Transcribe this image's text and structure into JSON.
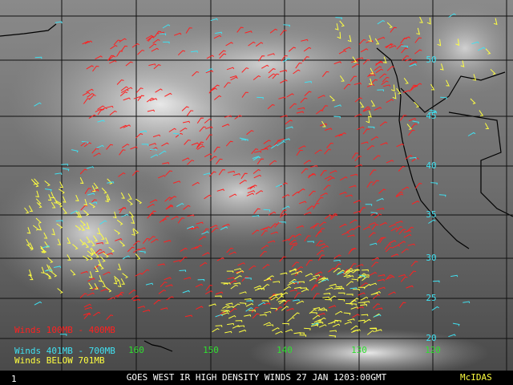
{
  "latitude_labels": [
    50,
    45,
    40,
    35,
    30,
    25,
    20
  ],
  "longitude_labels": [
    160,
    150,
    140,
    130,
    120
  ],
  "legend": [
    "Winds 100MB - 400MB",
    "Winds 401MB - 700MB",
    "Winds BELOW 701MB"
  ],
  "footer": {
    "frame": "1",
    "title": "GOES WEST IR HIGH DENSITY WINDS 27 JAN 1203:00GMT",
    "brand": "McIDAS"
  }
}
